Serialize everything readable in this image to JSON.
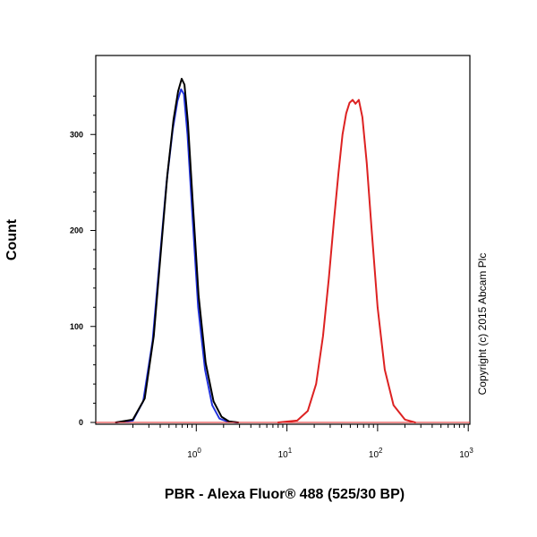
{
  "chart_data": {
    "type": "line",
    "title": "",
    "xlabel": "PBR - Alexa Fluor® 488 (525/30 BP)",
    "ylabel": "Count",
    "x_scale": "log",
    "xlim": [
      0.1,
      1000
    ],
    "ylim": [
      0,
      360
    ],
    "grid": false,
    "legend": "none",
    "y_ticks": [
      {
        "value": 0,
        "label": "0"
      },
      {
        "value": 100,
        "label": "100"
      },
      {
        "value": 200,
        "label": "200"
      },
      {
        "value": 300,
        "label": "300"
      }
    ],
    "x_ticks": [
      {
        "value": 1,
        "base": "10",
        "exp": "0"
      },
      {
        "value": 10,
        "base": "10",
        "exp": "1"
      },
      {
        "value": 100,
        "base": "10",
        "exp": "2"
      },
      {
        "value": 1000,
        "base": "10",
        "exp": "3"
      }
    ],
    "series": [
      {
        "color": "#2233dd",
        "x": [
          0.13,
          0.2,
          0.26,
          0.33,
          0.4,
          0.47,
          0.55,
          0.62,
          0.68,
          0.73,
          0.8,
          0.9,
          1.05,
          1.25,
          1.5,
          1.8,
          2.2,
          2.8
        ],
        "y": [
          0,
          2,
          22,
          85,
          175,
          250,
          305,
          335,
          347,
          342,
          300,
          220,
          120,
          55,
          18,
          4,
          1,
          0
        ]
      },
      {
        "color": "#000000",
        "x": [
          0.13,
          0.2,
          0.27,
          0.34,
          0.41,
          0.48,
          0.56,
          0.63,
          0.69,
          0.74,
          0.81,
          0.91,
          1.06,
          1.27,
          1.55,
          1.9,
          2.3,
          2.9
        ],
        "y": [
          0,
          3,
          25,
          90,
          182,
          258,
          315,
          345,
          358,
          352,
          312,
          232,
          132,
          62,
          22,
          6,
          1,
          0
        ]
      },
      {
        "color": "#dd2222",
        "x": [
          8,
          13,
          17,
          21,
          25,
          29,
          33,
          37,
          41,
          45,
          49,
          53,
          57,
          62,
          68,
          76,
          86,
          100,
          120,
          150,
          200,
          260
        ],
        "y": [
          0,
          2,
          12,
          40,
          90,
          150,
          210,
          260,
          300,
          322,
          333,
          336,
          332,
          336,
          318,
          270,
          200,
          120,
          55,
          18,
          3,
          0
        ]
      }
    ],
    "watermark": "Copyright (c) 2015 Abcam Plc"
  }
}
